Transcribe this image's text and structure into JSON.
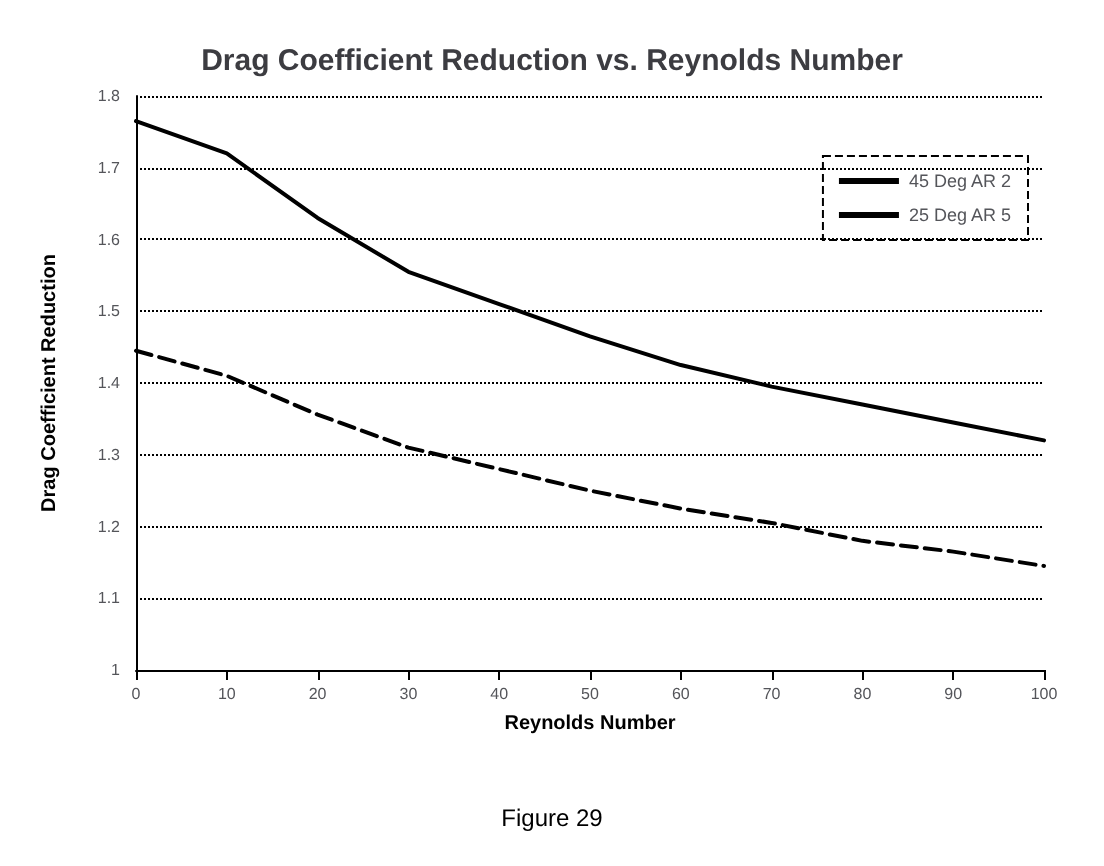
{
  "chart_data": {
    "type": "line",
    "title": "Drag Coefficient Reduction vs. Reynolds Number",
    "xlabel": "Reynolds Number",
    "ylabel": "Drag Coefficient Reduction",
    "x": [
      0,
      10,
      20,
      30,
      40,
      50,
      60,
      70,
      80,
      90,
      100
    ],
    "series": [
      {
        "name": "45 Deg AR 2",
        "color": "#000000",
        "line_style": "dashed",
        "values": [
          1.445,
          1.41,
          1.356,
          1.31,
          1.28,
          1.25,
          1.225,
          1.205,
          1.18,
          1.165,
          1.145
        ]
      },
      {
        "name": "25 Deg AR 5",
        "color": "#000000",
        "line_style": "solid",
        "values": [
          1.765,
          1.72,
          1.63,
          1.555,
          1.51,
          1.465,
          1.425,
          1.395,
          1.37,
          1.345,
          1.32
        ]
      }
    ],
    "xlim": [
      0,
      100
    ],
    "xticks": [
      0,
      10,
      20,
      30,
      40,
      50,
      60,
      70,
      80,
      90,
      100
    ],
    "ylim": [
      1,
      1.8
    ],
    "yticks": [
      1,
      1.1,
      1.2,
      1.3,
      1.4,
      1.5,
      1.6,
      1.7,
      1.8
    ],
    "grid": "y",
    "legend": "top right",
    "marker": "none",
    "annotations": [
      "Figure 29"
    ]
  }
}
